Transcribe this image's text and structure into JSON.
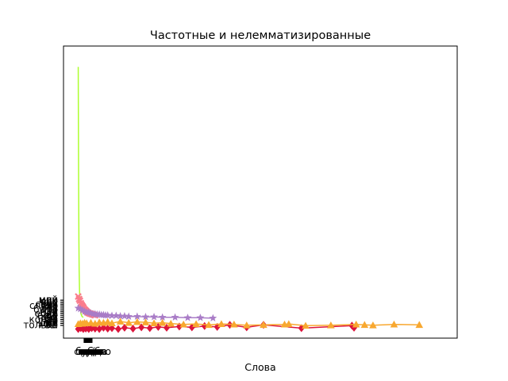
{
  "chart_data": {
    "type": "line",
    "title": "Частотные и нелемматизированные",
    "xlabel": "Слова",
    "ylabel": "",
    "grid": false,
    "legend": "none",
    "xlim": [
      -35,
      900
    ],
    "ylim": [
      -22,
      680
    ],
    "series": [
      {
        "color": "#adff2f",
        "marker": "none",
        "x": [
          0,
          0.2,
          0.5,
          0.8,
          1.2,
          1.6,
          2.2,
          3,
          4,
          5.5,
          7,
          9,
          12
        ],
        "y": [
          630,
          560,
          470,
          380,
          290,
          210,
          140,
          95,
          65,
          45,
          35,
          30,
          28
        ]
      },
      {
        "color": "#fa7c8c",
        "marker": "x",
        "x": [
          0,
          2,
          4,
          6,
          8,
          10,
          12,
          14,
          16,
          18,
          20,
          22,
          25,
          28,
          31,
          34,
          37,
          40
        ],
        "y": [
          78,
          72,
          68,
          62,
          58,
          55,
          52,
          48,
          46,
          44,
          42,
          40,
          38,
          37,
          36,
          35,
          34,
          33
        ]
      },
      {
        "color": "#a97cc7",
        "marker": "star",
        "x": [
          0,
          5,
          10,
          15,
          20,
          25,
          30,
          35,
          40,
          45,
          50,
          55,
          60,
          65,
          70,
          80,
          90,
          100,
          110,
          120,
          140,
          160,
          180,
          200,
          230,
          260,
          290,
          320
        ],
        "y": [
          50,
          48,
          45,
          42,
          40,
          40,
          38,
          36,
          36,
          35,
          35,
          34,
          34,
          33,
          33,
          32,
          32,
          31,
          31,
          30,
          30,
          29,
          29,
          28,
          28,
          27,
          27,
          26
        ]
      },
      {
        "color": "#dc143c",
        "marker": "diamond",
        "x": [
          0,
          6,
          12,
          18,
          25,
          32,
          40,
          50,
          60,
          70,
          80,
          95,
          110,
          130,
          150,
          170,
          190,
          210,
          240,
          270,
          300,
          330,
          360,
          400,
          440,
          530,
          650,
          655
        ],
        "y": [
          0,
          2,
          0,
          1,
          0,
          2,
          1,
          0,
          3,
          1,
          2,
          0,
          3,
          1,
          4,
          2,
          5,
          3,
          6,
          4,
          7,
          5,
          10,
          4,
          10,
          2,
          8,
          3
        ]
      },
      {
        "color": "#f8a830",
        "marker": "triangle",
        "x": [
          0,
          5,
          10,
          15,
          20,
          30,
          40,
          50,
          60,
          70,
          80,
          100,
          120,
          140,
          160,
          180,
          200,
          220,
          250,
          280,
          310,
          340,
          370,
          400,
          440,
          490,
          500,
          540,
          600,
          660,
          680,
          700,
          750,
          810
        ],
        "y": [
          12,
          14,
          13,
          15,
          14,
          15,
          13,
          16,
          15,
          17,
          14,
          18,
          15,
          17,
          16,
          14,
          15,
          13,
          11,
          12,
          10,
          12,
          11,
          9,
          10,
          11,
          12,
          8,
          9,
          11,
          10,
          9,
          11,
          10
        ]
      }
    ],
    "ytick_labels": [
      "мой",
      "слово",
      "и",
      "в",
      "не",
      "на",
      "с",
      "я",
      "что",
      "он",
      "как",
      "это",
      "по",
      "к",
      "но",
      "из",
      "за",
      "от",
      "для",
      "все",
      "так",
      "же",
      "бы",
      "вы",
      "мы",
      "ты",
      "еще",
      "уже",
      "или",
      "да",
      "нет",
      "там",
      "тут",
      "где",
      "вот",
      "если",
      "когда",
      "только",
      "себя",
      "быть"
    ],
    "xtick_labels": [
      "мой",
      "слово",
      "и",
      "в",
      "не",
      "на",
      "с",
      "я",
      "что",
      "он",
      "как",
      "это",
      "по",
      "к",
      "но",
      "из",
      "за",
      "от",
      "для",
      "все",
      "так",
      "же",
      "бы",
      "вы",
      "мы",
      "ты",
      "еще",
      "уже",
      "или",
      "да",
      "нет",
      "там",
      "тут",
      "где",
      "вот",
      "если",
      "когда",
      "только",
      "себя",
      "быть"
    ]
  }
}
